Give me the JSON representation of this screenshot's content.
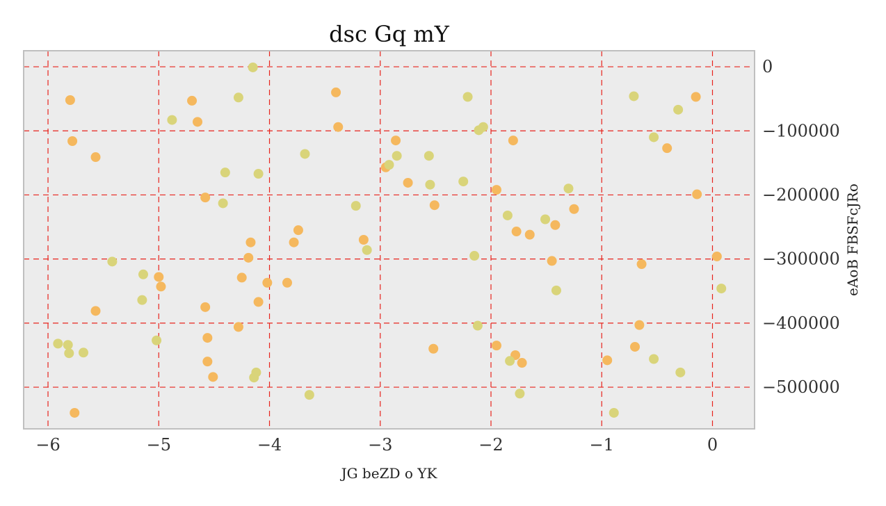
{
  "chart_data": {
    "type": "scatter",
    "title": "dsc  Gq mY",
    "xlabel": "JG beZD o YK",
    "ylabel": "eAoB FBSFcJRo",
    "xlim": [
      -6.22,
      0.38
    ],
    "ylim": [
      -565000,
      25000
    ],
    "x_ticks": [
      -6,
      -5,
      -4,
      -3,
      -2,
      -1,
      0
    ],
    "x_tick_labels": [
      "−6",
      "−5",
      "−4",
      "−3",
      "−2",
      "−1",
      "0"
    ],
    "y_ticks": [
      0,
      -100000,
      -200000,
      -300000,
      -400000,
      -500000
    ],
    "y_tick_labels": [
      "0",
      "−100000",
      "−200000",
      "−300000",
      "−400000",
      "−500000"
    ],
    "grid": true,
    "colors": {
      "background": "#ececec",
      "frame": "#bfbfbf",
      "grid": "#e8231c",
      "orange": "#f5b85e",
      "yellow": "#d9d47a"
    },
    "series": [
      {
        "color": "orange",
        "points": [
          [
            -5.8,
            -52000
          ],
          [
            -5.78,
            -116000
          ],
          [
            -5.57,
            -141000
          ],
          [
            -5.57,
            -381000
          ],
          [
            -5.76,
            -540000
          ],
          [
            -4.7,
            -53000
          ],
          [
            -4.65,
            -86000
          ],
          [
            -4.58,
            -204000
          ],
          [
            -4.58,
            -375000
          ],
          [
            -4.56,
            -423000
          ],
          [
            -4.56,
            -460000
          ],
          [
            -4.51,
            -484000
          ],
          [
            -5.0,
            -328000
          ],
          [
            -4.98,
            -343000
          ],
          [
            -4.28,
            -406000
          ],
          [
            -4.25,
            -329000
          ],
          [
            -4.19,
            -298000
          ],
          [
            -4.17,
            -274000
          ],
          [
            -4.1,
            -367000
          ],
          [
            -4.02,
            -337000
          ],
          [
            -3.84,
            -337000
          ],
          [
            -3.78,
            -274000
          ],
          [
            -3.74,
            -255000
          ],
          [
            -3.4,
            -40000
          ],
          [
            -3.38,
            -94000
          ],
          [
            -3.15,
            -270000
          ],
          [
            -2.95,
            -157000
          ],
          [
            -2.86,
            -115000
          ],
          [
            -2.75,
            -181000
          ],
          [
            -2.52,
            -440000
          ],
          [
            -2.51,
            -216000
          ],
          [
            -1.95,
            -192000
          ],
          [
            -1.95,
            -435000
          ],
          [
            -1.8,
            -115000
          ],
          [
            -1.78,
            -450000
          ],
          [
            -1.77,
            -257000
          ],
          [
            -1.72,
            -462000
          ],
          [
            -1.65,
            -262000
          ],
          [
            -1.45,
            -303000
          ],
          [
            -1.42,
            -247000
          ],
          [
            -1.25,
            -222000
          ],
          [
            -0.95,
            -458000
          ],
          [
            -0.7,
            -437000
          ],
          [
            -0.66,
            -403000
          ],
          [
            -0.64,
            -308000
          ],
          [
            -0.41,
            -127000
          ],
          [
            -0.15,
            -47000
          ],
          [
            -0.14,
            -199000
          ],
          [
            0.04,
            -296000
          ]
        ]
      },
      {
        "color": "yellow",
        "points": [
          [
            -5.91,
            -432000
          ],
          [
            -5.82,
            -434000
          ],
          [
            -5.81,
            -447000
          ],
          [
            -5.68,
            -446000
          ],
          [
            -5.42,
            -304000
          ],
          [
            -5.15,
            -364000
          ],
          [
            -5.14,
            -324000
          ],
          [
            -5.02,
            -427000
          ],
          [
            -4.88,
            -83000
          ],
          [
            -4.42,
            -213000
          ],
          [
            -4.4,
            -165000
          ],
          [
            -4.28,
            -48000
          ],
          [
            -4.15,
            -1000
          ],
          [
            -4.14,
            -485000
          ],
          [
            -4.12,
            -477000
          ],
          [
            -4.1,
            -167000
          ],
          [
            -3.68,
            -136000
          ],
          [
            -3.64,
            -512000
          ],
          [
            -3.22,
            -217000
          ],
          [
            -3.12,
            -286000
          ],
          [
            -2.92,
            -153000
          ],
          [
            -2.85,
            -139000
          ],
          [
            -2.56,
            -139000
          ],
          [
            -2.55,
            -184000
          ],
          [
            -2.25,
            -179000
          ],
          [
            -2.21,
            -47000
          ],
          [
            -2.15,
            -295000
          ],
          [
            -2.12,
            -404000
          ],
          [
            -2.11,
            -99000
          ],
          [
            -2.07,
            -94000
          ],
          [
            -1.85,
            -232000
          ],
          [
            -1.83,
            -459000
          ],
          [
            -1.74,
            -510000
          ],
          [
            -1.51,
            -238000
          ],
          [
            -1.41,
            -349000
          ],
          [
            -1.3,
            -190000
          ],
          [
            -0.89,
            -540000
          ],
          [
            -0.71,
            -46000
          ],
          [
            -0.53,
            -110000
          ],
          [
            -0.53,
            -456000
          ],
          [
            -0.31,
            -67000
          ],
          [
            -0.29,
            -477000
          ],
          [
            0.08,
            -346000
          ]
        ]
      }
    ]
  }
}
